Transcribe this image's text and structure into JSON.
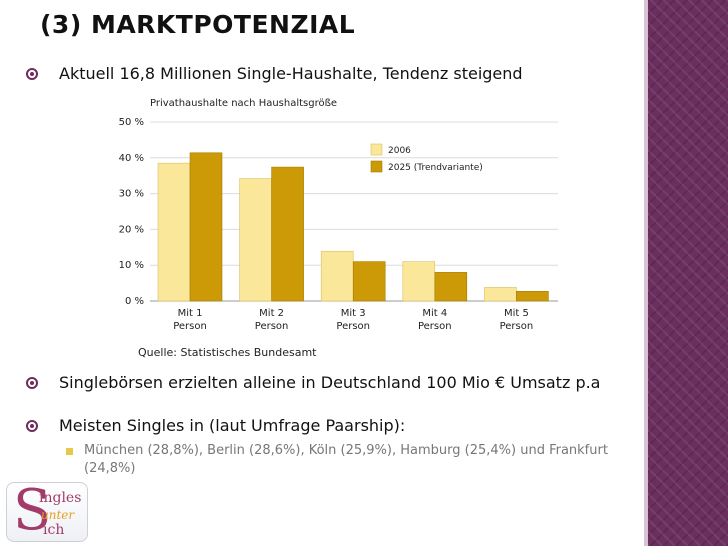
{
  "slide": {
    "title": "(3) MARKTPOTENZIAL",
    "bullets": [
      {
        "text": "Aktuell 16,8 Millionen Single-Haushalte, Tendenz steigend"
      },
      {
        "text": "Singlebörsen erzielten alleine in Deutschland 100 Mio € Umsatz p.a"
      },
      {
        "text": "Meisten Singles in (laut Umfrage Paarship):"
      }
    ],
    "sub_bullet": "München (28,8%), Berlin (28,6%), Köln (25,9%), Hamburg (25,4%) und Frankfurt (24,8%)",
    "source": "Quelle: Statistisches Bundesamt"
  },
  "logo": {
    "letter": "S",
    "line1": "ingles",
    "line2": "unter",
    "line3": "ich"
  },
  "colors": {
    "accent": "#6b2d5c",
    "series_2006": "#fbe79a",
    "series_2025": "#cc9a06",
    "band": "#6a2f5e"
  },
  "chart_data": {
    "type": "bar",
    "title": "Privathaushalte nach Haushaltsgröße",
    "categories": [
      [
        "Mit 1",
        "Person"
      ],
      [
        "Mit 2",
        "Person"
      ],
      [
        "Mit 3",
        "Person"
      ],
      [
        "Mit 4",
        "Person"
      ],
      [
        "Mit 5",
        "Person"
      ]
    ],
    "series": [
      {
        "name": "2006",
        "values": [
          38.5,
          34.2,
          13.9,
          11.0,
          3.8
        ]
      },
      {
        "name": "2025 (Trendvariante)",
        "values": [
          41.4,
          37.4,
          11.0,
          8.0,
          2.7
        ]
      }
    ],
    "yticks": [
      "0 %",
      "10 %",
      "20 %",
      "30 %",
      "40 %",
      "50 %"
    ],
    "ylim": [
      0,
      50
    ],
    "grid": true,
    "legend": "top-right"
  }
}
